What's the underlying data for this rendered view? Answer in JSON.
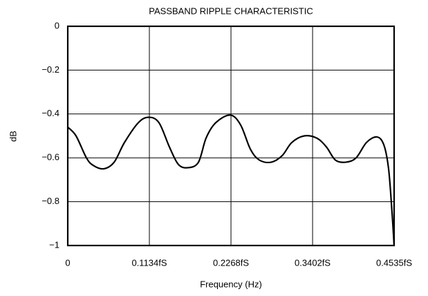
{
  "chart_data": {
    "type": "line",
    "title": "PASSBAND RIPPLE CHARACTERISTIC",
    "x_label": "Frequency (Hz)",
    "y_label": "dB",
    "x": [
      0,
      0.0115,
      0.0259,
      0.0356,
      0.05,
      0.0644,
      0.0788,
      0.098,
      0.1124,
      0.1268,
      0.1412,
      0.1537,
      0.1672,
      0.1816,
      0.1922,
      0.2056,
      0.2258,
      0.2402,
      0.2537,
      0.2661,
      0.2825,
      0.2979,
      0.3113,
      0.3286,
      0.3459,
      0.3593,
      0.3718,
      0.3862,
      0.4007,
      0.4151,
      0.4295,
      0.4391,
      0.4458,
      0.4506,
      0.4535
    ],
    "series": [
      {
        "color": "#000000",
        "values": [
          -0.46,
          -0.5,
          -0.6,
          -0.635,
          -0.65,
          -0.62,
          -0.53,
          -0.44,
          -0.415,
          -0.44,
          -0.55,
          -0.63,
          -0.645,
          -0.62,
          -0.51,
          -0.44,
          -0.405,
          -0.45,
          -0.56,
          -0.61,
          -0.62,
          -0.59,
          -0.53,
          -0.5,
          -0.51,
          -0.55,
          -0.61,
          -0.62,
          -0.6,
          -0.53,
          -0.505,
          -0.54,
          -0.65,
          -0.85,
          -1.0
        ]
      }
    ],
    "xlim": [
      0,
      0.4535
    ],
    "xticks": [
      0,
      {
        "value": 0.1134,
        "label": "0.1134fS"
      },
      {
        "value": 0.2268,
        "label": "0.2268fS"
      },
      {
        "value": 0.3402,
        "label": "0.3402fS"
      },
      {
        "value": 0.4535,
        "label": "0.4535fS"
      }
    ],
    "ylim": [
      -1,
      0
    ],
    "yticks": [
      {
        "value": -1,
        "label": "−1"
      },
      {
        "value": -0.8,
        "label": "−0.8"
      },
      {
        "value": -0.6,
        "label": "−0.6"
      },
      {
        "value": -0.4,
        "label": "−0.4"
      },
      {
        "value": -0.2,
        "label": "−0.2"
      },
      0
    ],
    "grid": true
  }
}
